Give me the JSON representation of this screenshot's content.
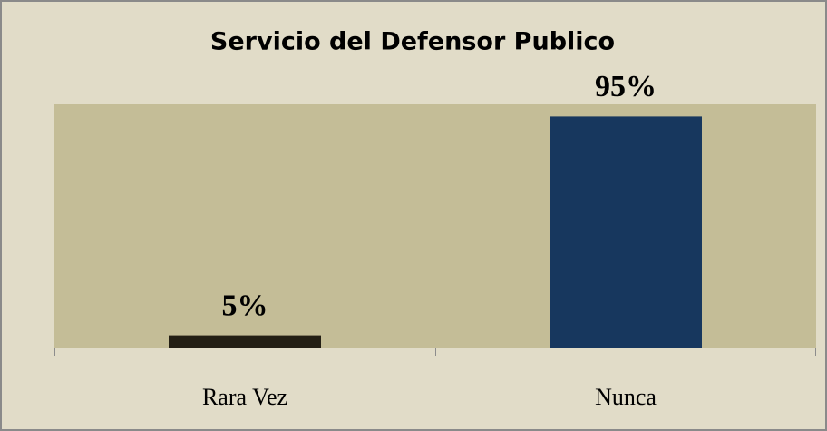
{
  "chart_data": {
    "type": "bar",
    "title": "Servicio del Defensor Publico",
    "categories": [
      "Rara Vez",
      "Nunca"
    ],
    "values": [
      5,
      95
    ],
    "value_labels": [
      "5%",
      "95%"
    ],
    "colors": [
      "#231f14",
      "#17375e"
    ],
    "ylim": [
      0,
      100
    ]
  }
}
